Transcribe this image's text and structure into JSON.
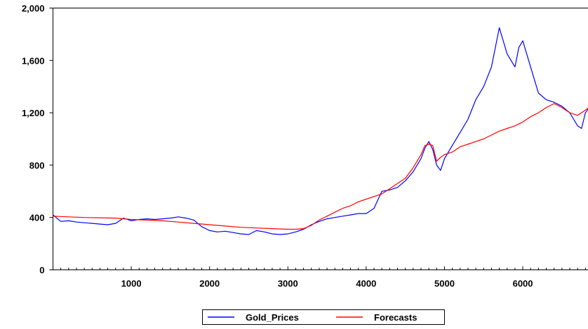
{
  "chart_data": {
    "type": "line",
    "title": "",
    "xlabel": "",
    "ylabel": "",
    "xlim": [
      0,
      6900
    ],
    "ylim": [
      0,
      2000
    ],
    "x_ticks": [
      1000,
      2000,
      3000,
      4000,
      5000,
      6000
    ],
    "x_tick_labels": [
      "1000",
      "2000",
      "3000",
      "4000",
      "5000",
      "6000"
    ],
    "y_ticks": [
      0,
      400,
      800,
      1200,
      1600,
      2000
    ],
    "y_tick_labels": [
      "0",
      "400",
      "800",
      "1,200",
      "1,600",
      "2,000"
    ],
    "grid": false,
    "legend_position": "bottom-center",
    "series": [
      {
        "name": "Gold_Prices",
        "color": "#0000ff",
        "x": [
          0,
          100,
          200,
          300,
          400,
          500,
          600,
          700,
          800,
          900,
          1000,
          1100,
          1200,
          1300,
          1400,
          1500,
          1600,
          1700,
          1800,
          1900,
          2000,
          2100,
          2200,
          2300,
          2400,
          2500,
          2600,
          2700,
          2800,
          2900,
          3000,
          3100,
          3200,
          3300,
          3400,
          3500,
          3600,
          3700,
          3800,
          3900,
          4000,
          4100,
          4200,
          4300,
          4400,
          4500,
          4600,
          4700,
          4750,
          4800,
          4850,
          4900,
          4950,
          5000,
          5100,
          5200,
          5300,
          5400,
          5500,
          5600,
          5650,
          5700,
          5750,
          5800,
          5850,
          5900,
          5950,
          6000,
          6050,
          6100,
          6150,
          6200,
          6300,
          6400,
          6500,
          6600,
          6650,
          6700,
          6750,
          6800,
          6900
        ],
        "y": [
          420,
          370,
          375,
          365,
          360,
          355,
          350,
          345,
          355,
          395,
          375,
          385,
          390,
          385,
          390,
          395,
          405,
          395,
          380,
          330,
          300,
          290,
          295,
          285,
          275,
          270,
          300,
          290,
          275,
          270,
          275,
          290,
          310,
          345,
          370,
          390,
          400,
          410,
          420,
          430,
          430,
          470,
          600,
          610,
          630,
          680,
          750,
          850,
          930,
          980,
          920,
          800,
          760,
          850,
          950,
          1050,
          1150,
          1300,
          1400,
          1550,
          1700,
          1850,
          1750,
          1650,
          1600,
          1550,
          1700,
          1750,
          1650,
          1550,
          1450,
          1350,
          1300,
          1280,
          1250,
          1200,
          1150,
          1100,
          1080,
          1200,
          1280
        ]
      },
      {
        "name": "Forecasts",
        "color": "#ff0000",
        "x": [
          0,
          200,
          400,
          600,
          800,
          1000,
          1200,
          1400,
          1600,
          1800,
          2000,
          2200,
          2400,
          2600,
          2800,
          3000,
          3100,
          3200,
          3300,
          3400,
          3500,
          3600,
          3700,
          3800,
          3900,
          4000,
          4100,
          4200,
          4300,
          4400,
          4500,
          4600,
          4700,
          4750,
          4800,
          4850,
          4900,
          4950,
          5000,
          5100,
          5200,
          5300,
          5400,
          5500,
          5600,
          5700,
          5800,
          5900,
          6000,
          6100,
          6200,
          6300,
          6400,
          6500,
          6600,
          6700,
          6800,
          6900
        ],
        "y": [
          410,
          405,
          400,
          398,
          395,
          385,
          380,
          375,
          365,
          355,
          345,
          335,
          325,
          320,
          315,
          310,
          310,
          315,
          340,
          380,
          410,
          440,
          470,
          490,
          520,
          540,
          560,
          580,
          620,
          660,
          700,
          780,
          880,
          950,
          960,
          950,
          830,
          860,
          880,
          900,
          940,
          960,
          980,
          1000,
          1030,
          1060,
          1080,
          1100,
          1130,
          1170,
          1200,
          1240,
          1270,
          1240,
          1200,
          1180,
          1220,
          1270
        ]
      }
    ]
  }
}
